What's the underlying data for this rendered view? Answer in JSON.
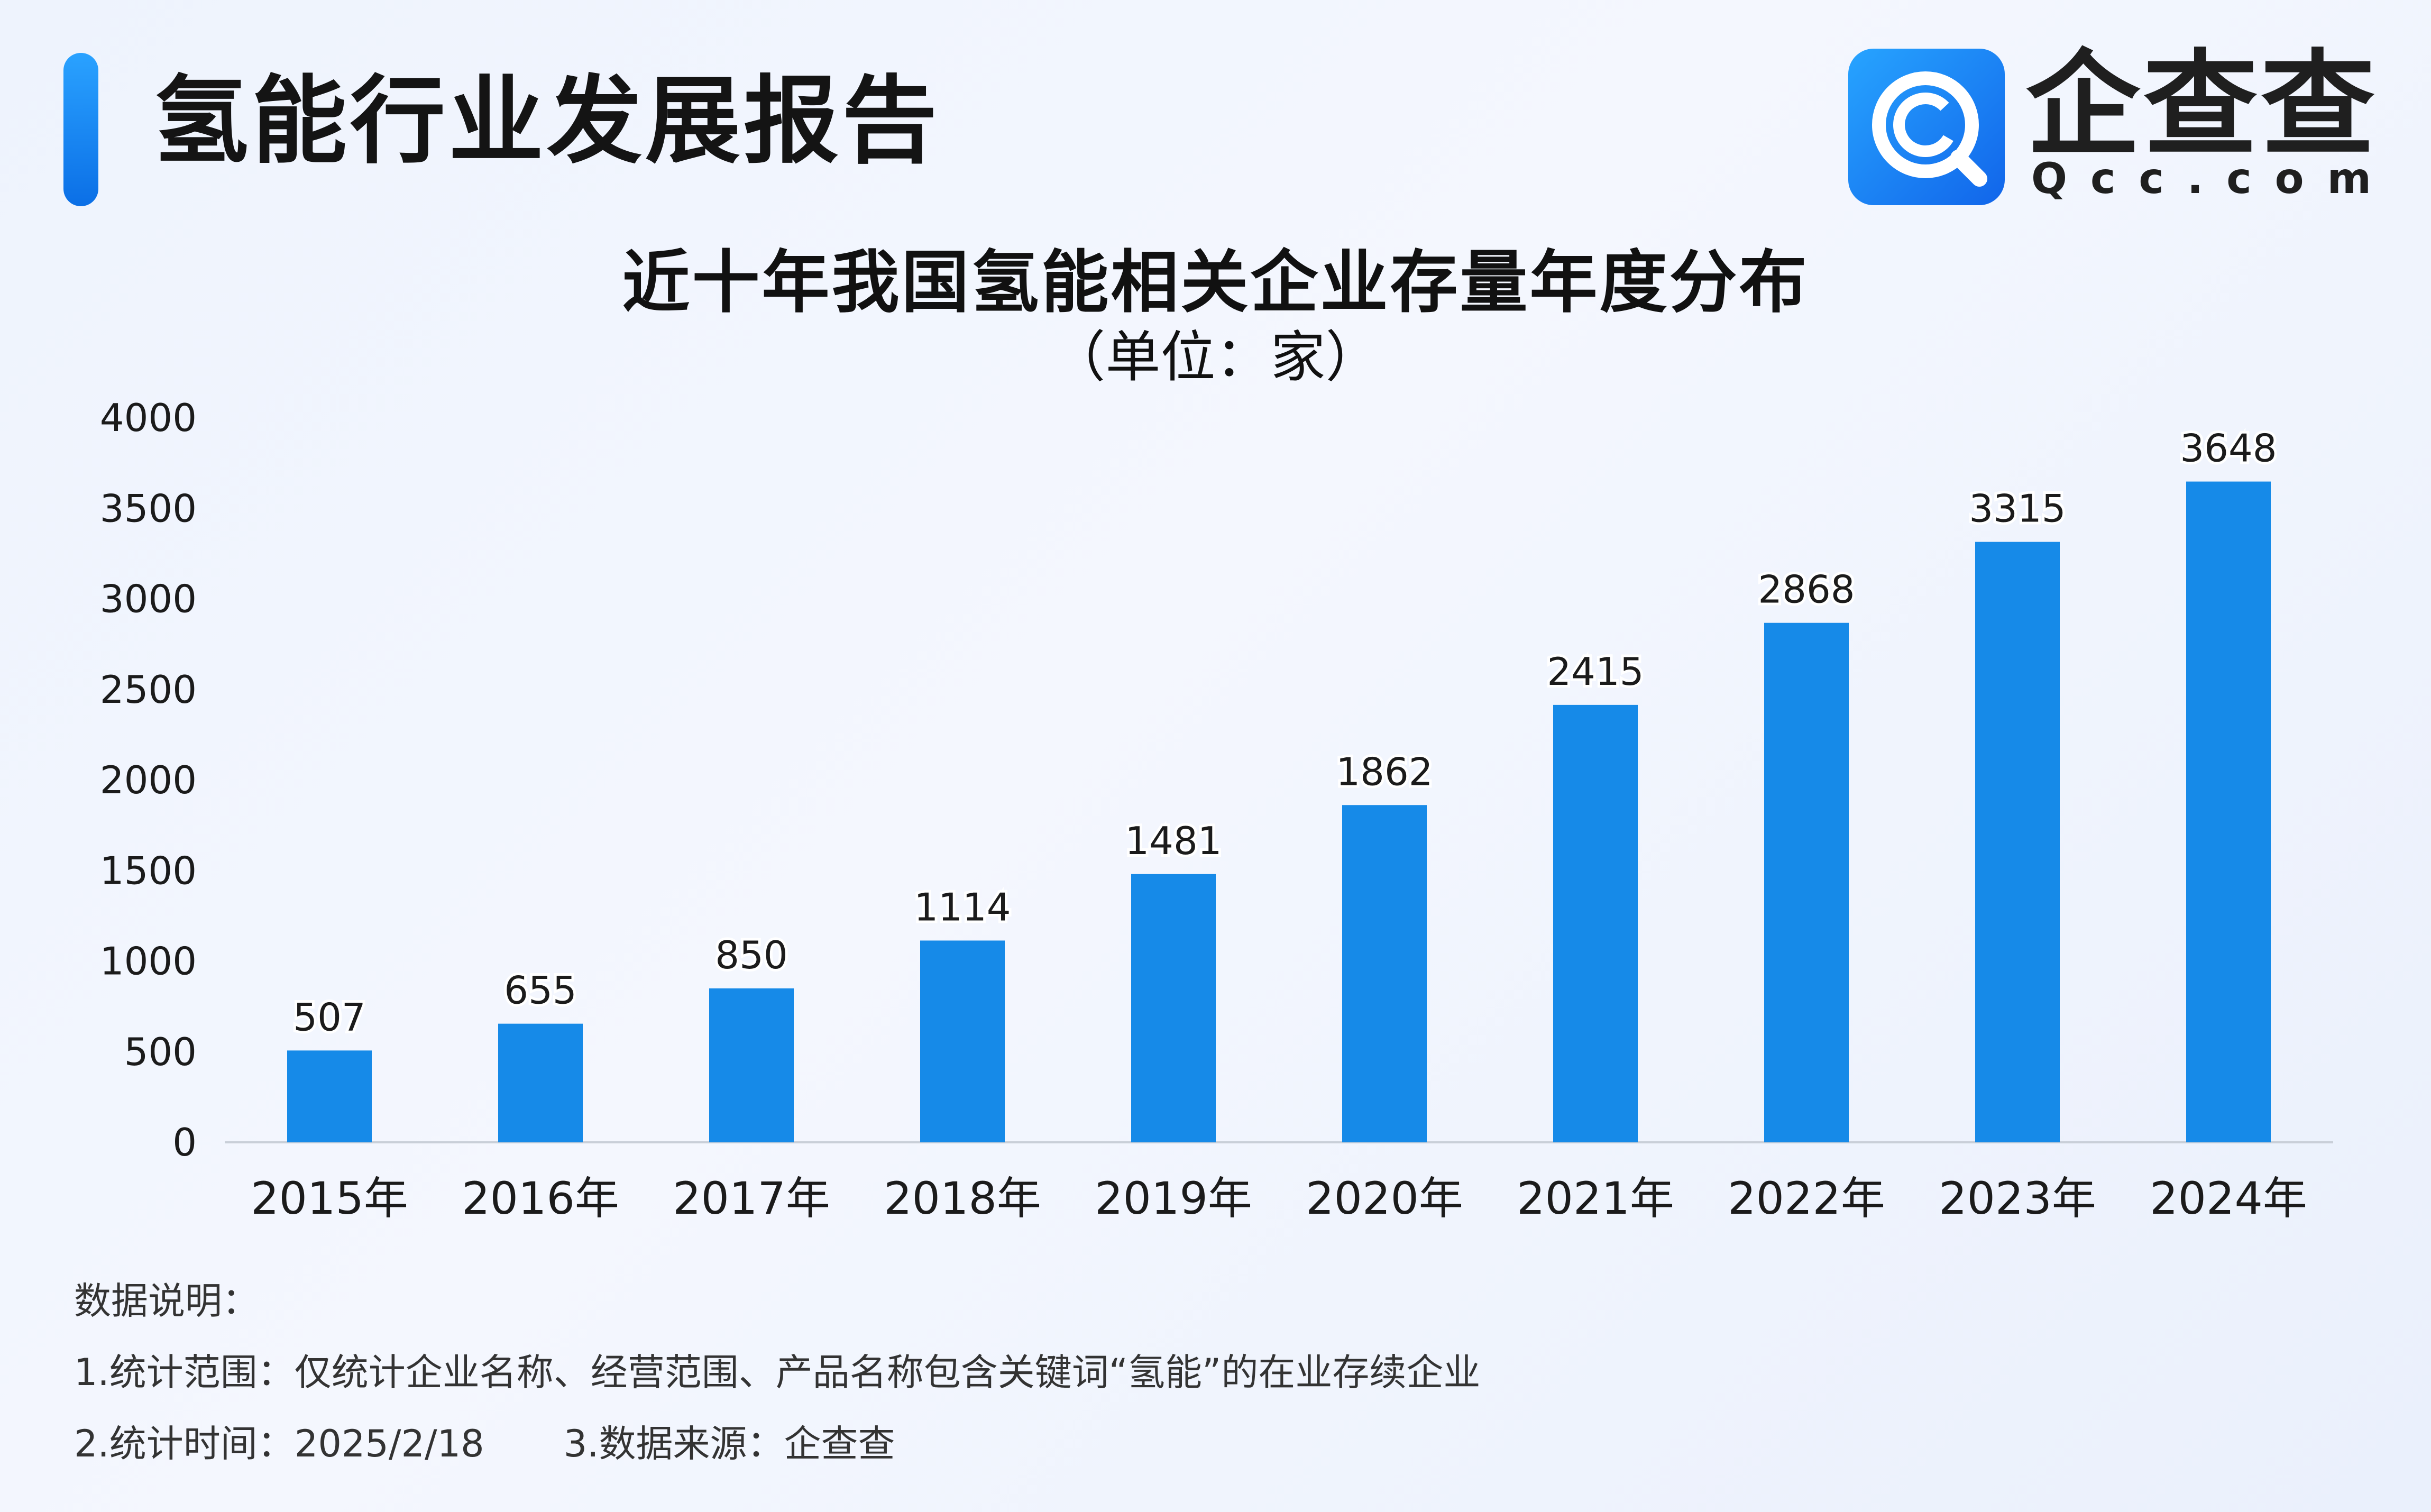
{
  "header": {
    "report_title": "氢能行业发展报告",
    "logo_cn": "企查查",
    "logo_en": "Qcc.com",
    "brand_color": "#1a8cf0"
  },
  "chart_data": {
    "type": "bar",
    "title": "近十年我国氢能相关企业存量年度分布",
    "subtitle": "（单位：家）",
    "categories": [
      "2015年",
      "2016年",
      "2017年",
      "2018年",
      "2019年",
      "2020年",
      "2021年",
      "2022年",
      "2023年",
      "2024年"
    ],
    "values": [
      507,
      655,
      850,
      1114,
      1481,
      1862,
      2415,
      2868,
      3315,
      3648
    ],
    "ylim": [
      0,
      4000
    ],
    "yticks": [
      "0",
      "500",
      "1000",
      "1500",
      "2000",
      "2500",
      "3000",
      "3500",
      "4000"
    ],
    "xlabel": "",
    "ylabel": "",
    "grid": false,
    "bar_color": "#168ae8"
  },
  "notes": {
    "heading": "数据说明：",
    "line1": "1.统计范围：仅统计企业名称、经营范围、产品名称包含关键词“氢能”的在业存续企业",
    "line2_a": "2.统计时间：2025/2/18",
    "line2_b": "3.数据来源：企查查"
  }
}
